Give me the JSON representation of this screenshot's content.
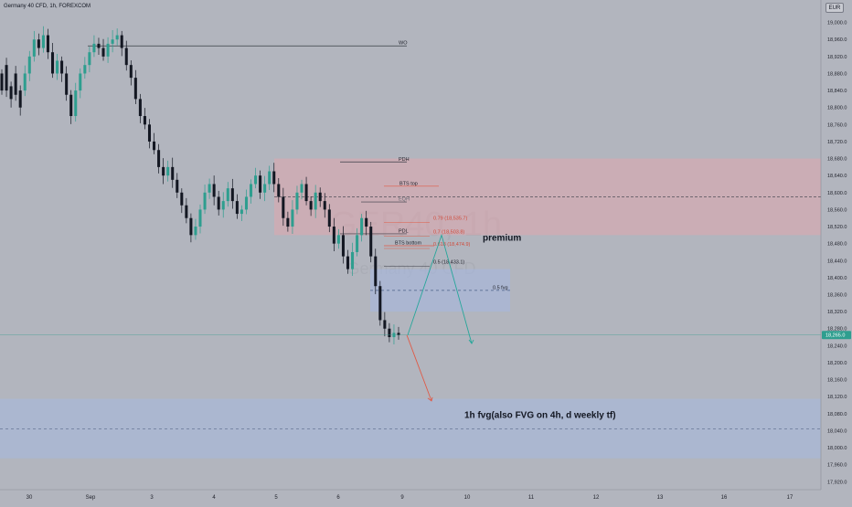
{
  "header": {
    "symbol_title": "Germany 40 CFD, 1h, FOREXCOM",
    "currency": "EUR"
  },
  "watermark": {
    "symbol": "GER40, 1h",
    "description": "Germany 40 CFD"
  },
  "colors": {
    "background": "#b2b5be",
    "bull": "#2e9e8f",
    "bear": "#131722",
    "premium_zone": "#e0a6ad",
    "fvg_zone": "#a6b8de",
    "fib_text": "#d04a3a",
    "projection_up": "#26a69a",
    "projection_down": "#e05a46",
    "price_label": "#2e9e8f"
  },
  "chart_data": {
    "type": "candlestick",
    "instrument": "Germany 40 CFD",
    "timeframe": "1h",
    "ylim": [
      17940,
      19040
    ],
    "price_axis_ticks": [
      "19,000.0",
      "18,960.0",
      "18,920.0",
      "18,880.0",
      "18,840.0",
      "18,800.0",
      "18,760.0",
      "18,720.0",
      "18,680.0",
      "18,640.0",
      "18,600.0",
      "18,560.0",
      "18,520.0",
      "18,480.0",
      "18,440.0",
      "18,400.0",
      "18,360.0",
      "18,320.0",
      "18,280.0",
      "18,240.0",
      "18,200.0",
      "18,160.0",
      "18,120.0",
      "18,080.0",
      "18,040.0",
      "18,000.0",
      "17,960.0",
      "17,920.0"
    ],
    "time_axis_labels": [
      "30",
      "Sep",
      "3",
      "4",
      "5",
      "6",
      "9",
      "10",
      "11",
      "12",
      "13",
      "16",
      "17"
    ],
    "current_price_label": "18,265.0",
    "current_price": 18265,
    "ohlc_path": [
      [
        18880,
        18840
      ],
      [
        18900,
        18840
      ],
      [
        18850,
        18820
      ],
      [
        18880,
        18830
      ],
      [
        18840,
        18800
      ],
      [
        18840,
        18880
      ],
      [
        18880,
        18920
      ],
      [
        18920,
        18960
      ],
      [
        18960,
        18940
      ],
      [
        18940,
        18970
      ],
      [
        18970,
        18930
      ],
      [
        18930,
        18880
      ],
      [
        18880,
        18910
      ],
      [
        18910,
        18880
      ],
      [
        18880,
        18830
      ],
      [
        18830,
        18780
      ],
      [
        18780,
        18840
      ],
      [
        18840,
        18880
      ],
      [
        18880,
        18900
      ],
      [
        18900,
        18930
      ],
      [
        18930,
        18950
      ],
      [
        18950,
        18940
      ],
      [
        18940,
        18920
      ],
      [
        18920,
        18950
      ],
      [
        18950,
        18960
      ],
      [
        18960,
        18970
      ],
      [
        18970,
        18940
      ],
      [
        18940,
        18900
      ],
      [
        18900,
        18870
      ],
      [
        18870,
        18820
      ],
      [
        18820,
        18780
      ],
      [
        18780,
        18760
      ],
      [
        18760,
        18720
      ],
      [
        18720,
        18700
      ],
      [
        18700,
        18660
      ],
      [
        18660,
        18640
      ],
      [
        18640,
        18660
      ],
      [
        18660,
        18630
      ],
      [
        18630,
        18600
      ],
      [
        18600,
        18570
      ],
      [
        18570,
        18540
      ],
      [
        18540,
        18500
      ],
      [
        18500,
        18520
      ],
      [
        18520,
        18560
      ],
      [
        18560,
        18600
      ],
      [
        18600,
        18620
      ],
      [
        18620,
        18590
      ],
      [
        18590,
        18560
      ],
      [
        18560,
        18580
      ],
      [
        18580,
        18610
      ],
      [
        18610,
        18580
      ],
      [
        18580,
        18550
      ],
      [
        18550,
        18560
      ],
      [
        18560,
        18590
      ],
      [
        18590,
        18620
      ],
      [
        18620,
        18640
      ],
      [
        18640,
        18600
      ],
      [
        18600,
        18620
      ],
      [
        18620,
        18650
      ],
      [
        18650,
        18620
      ],
      [
        18620,
        18590
      ],
      [
        18590,
        18540
      ],
      [
        18540,
        18520
      ],
      [
        18520,
        18560
      ],
      [
        18560,
        18600
      ],
      [
        18600,
        18620
      ],
      [
        18620,
        18580
      ],
      [
        18580,
        18560
      ],
      [
        18560,
        18600
      ],
      [
        18600,
        18580
      ],
      [
        18580,
        18560
      ],
      [
        18560,
        18520
      ],
      [
        18520,
        18480
      ],
      [
        18480,
        18500
      ],
      [
        18500,
        18450
      ],
      [
        18450,
        18420
      ],
      [
        18420,
        18460
      ],
      [
        18460,
        18500
      ],
      [
        18500,
        18540
      ],
      [
        18540,
        18520
      ],
      [
        18520,
        18450
      ],
      [
        18450,
        18380
      ],
      [
        18380,
        18300
      ],
      [
        18300,
        18280
      ],
      [
        18280,
        18260
      ],
      [
        18260,
        18270
      ],
      [
        18270,
        18265
      ]
    ],
    "zones": [
      {
        "name": "premium",
        "from": 18500,
        "to": 18680
      },
      {
        "name": "fvg-small",
        "from": 18320,
        "to": 18420
      },
      {
        "name": "fvg-1h",
        "from": 17975,
        "to": 18115
      }
    ],
    "levels": [
      {
        "label": "WO",
        "price": 18945
      },
      {
        "label": "PDH",
        "price": 18672
      },
      {
        "label": "BTS top",
        "price": 18615
      },
      {
        "label": "",
        "price": 18590
      },
      {
        "label": "EQH",
        "price": 18578
      },
      {
        "label": "PDL",
        "price": 18503
      },
      {
        "label": "BTS bottom",
        "price": 18475
      },
      {
        "label": "0.5 fvg",
        "price": 18370
      }
    ],
    "fib_levels": [
      {
        "label": "0.79 (18,535.7)",
        "price": 18535.7
      },
      {
        "label": "0.7 (18,503.8)",
        "price": 18503.8
      },
      {
        "label": "0.618 (18,474.9)",
        "price": 18474.9
      },
      {
        "label": "0.5 (18,433.1)",
        "price": 18433.1
      }
    ],
    "annotations": {
      "premium": "premium",
      "fvg_note": "1h fvg(also FVG on 4h, d weekly tf)",
      "fvg_mid": "0.5 fvg"
    },
    "projections": [
      {
        "name": "up-then-down",
        "points": [
          [
            18265
          ],
          [
            18500
          ],
          [
            18245
          ]
        ]
      },
      {
        "name": "down",
        "points": [
          [
            18265
          ],
          [
            18110
          ]
        ]
      }
    ]
  }
}
